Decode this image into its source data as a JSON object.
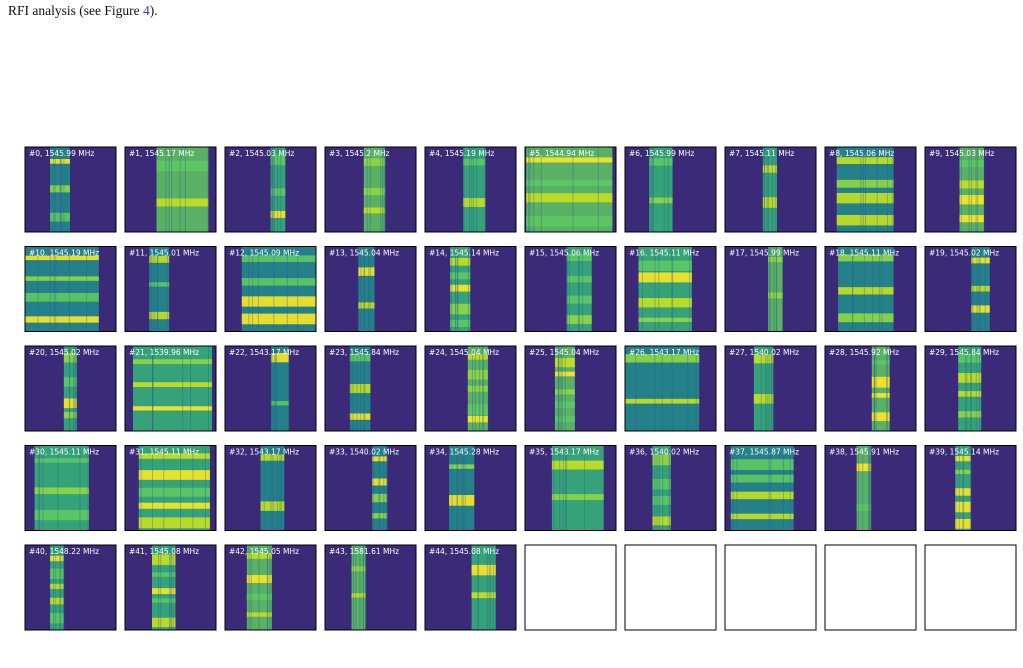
{
  "intro": {
    "before": "RFI analysis (see Figure ",
    "ref": "4",
    "after": ")."
  },
  "panels": [
    "#0, 1545.99 MHz",
    "#1, 1545.17 MHz",
    "#2, 1545.03 MHz",
    "#3, 1545.2 MHz",
    "#4, 1545.19 MHz",
    "#5, 1544.94 MHz",
    "#6, 1545.99 MHz",
    "#7, 1545.11 MHz",
    "#8, 1545.06 MHz",
    "#9, 1545.03 MHz",
    "#10, 1545.19 MHz",
    "#11, 1545.01 MHz",
    "#12, 1545.09 MHz",
    "#13, 1545.04 MHz",
    "#14, 1545.14 MHz",
    "#15, 1545.06 MHz",
    "#16, 1545.11 MHz",
    "#17, 1545.99 MHz",
    "#18, 1545.11 MHz",
    "#19, 1545.02 MHz",
    "#20, 1545.02 MHz",
    "#21, 1539.96 MHz",
    "#22, 1543.17 MHz",
    "#23, 1545.84 MHz",
    "#24, 1545.04 MHz",
    "#25, 1545.04 MHz",
    "#26, 1543.17 MHz",
    "#27, 1540.02 MHz",
    "#28, 1545.92 MHz",
    "#29, 1545.84 MHz",
    "#30, 1545.11 MHz",
    "#31, 1545.11 MHz",
    "#32, 1543.17 MHz",
    "#33, 1540.02 MHz",
    "#34, 1545.28 MHz",
    "#35, 1543.17 MHz",
    "#36, 1540.02 MHz",
    "#37, 1545.87 MHz",
    "#38, 1545.91 MHz",
    "#39, 1545.14 MHz",
    "#40, 1548.22 MHz",
    "#41, 1545.08 MHz",
    "#42, 1545.05 MHz",
    "#43, 1581.61 MHz",
    "#44, 1545.08 MHz"
  ]
}
